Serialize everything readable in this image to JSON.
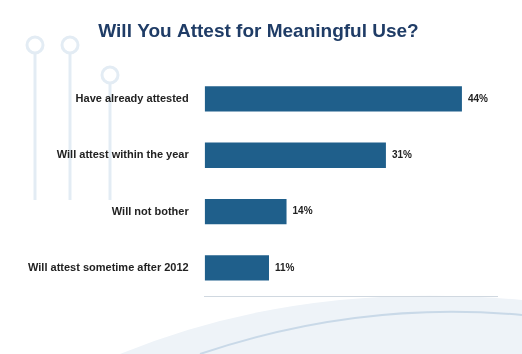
{
  "chart_data": {
    "type": "bar",
    "title": "Will You Attest for Meaningful Use?",
    "orientation": "horizontal",
    "categories": [
      "Have already attested",
      "Will attest within the year",
      "Will not bother",
      "Will attest sometime after 2012"
    ],
    "values": [
      44,
      31,
      14,
      11
    ],
    "value_labels": [
      "44%",
      "31%",
      "14%",
      "11%"
    ],
    "data_labels": true,
    "color": "#1f5f8b",
    "xlim": [
      0,
      50
    ],
    "grid": false,
    "tick_labels": "y"
  }
}
